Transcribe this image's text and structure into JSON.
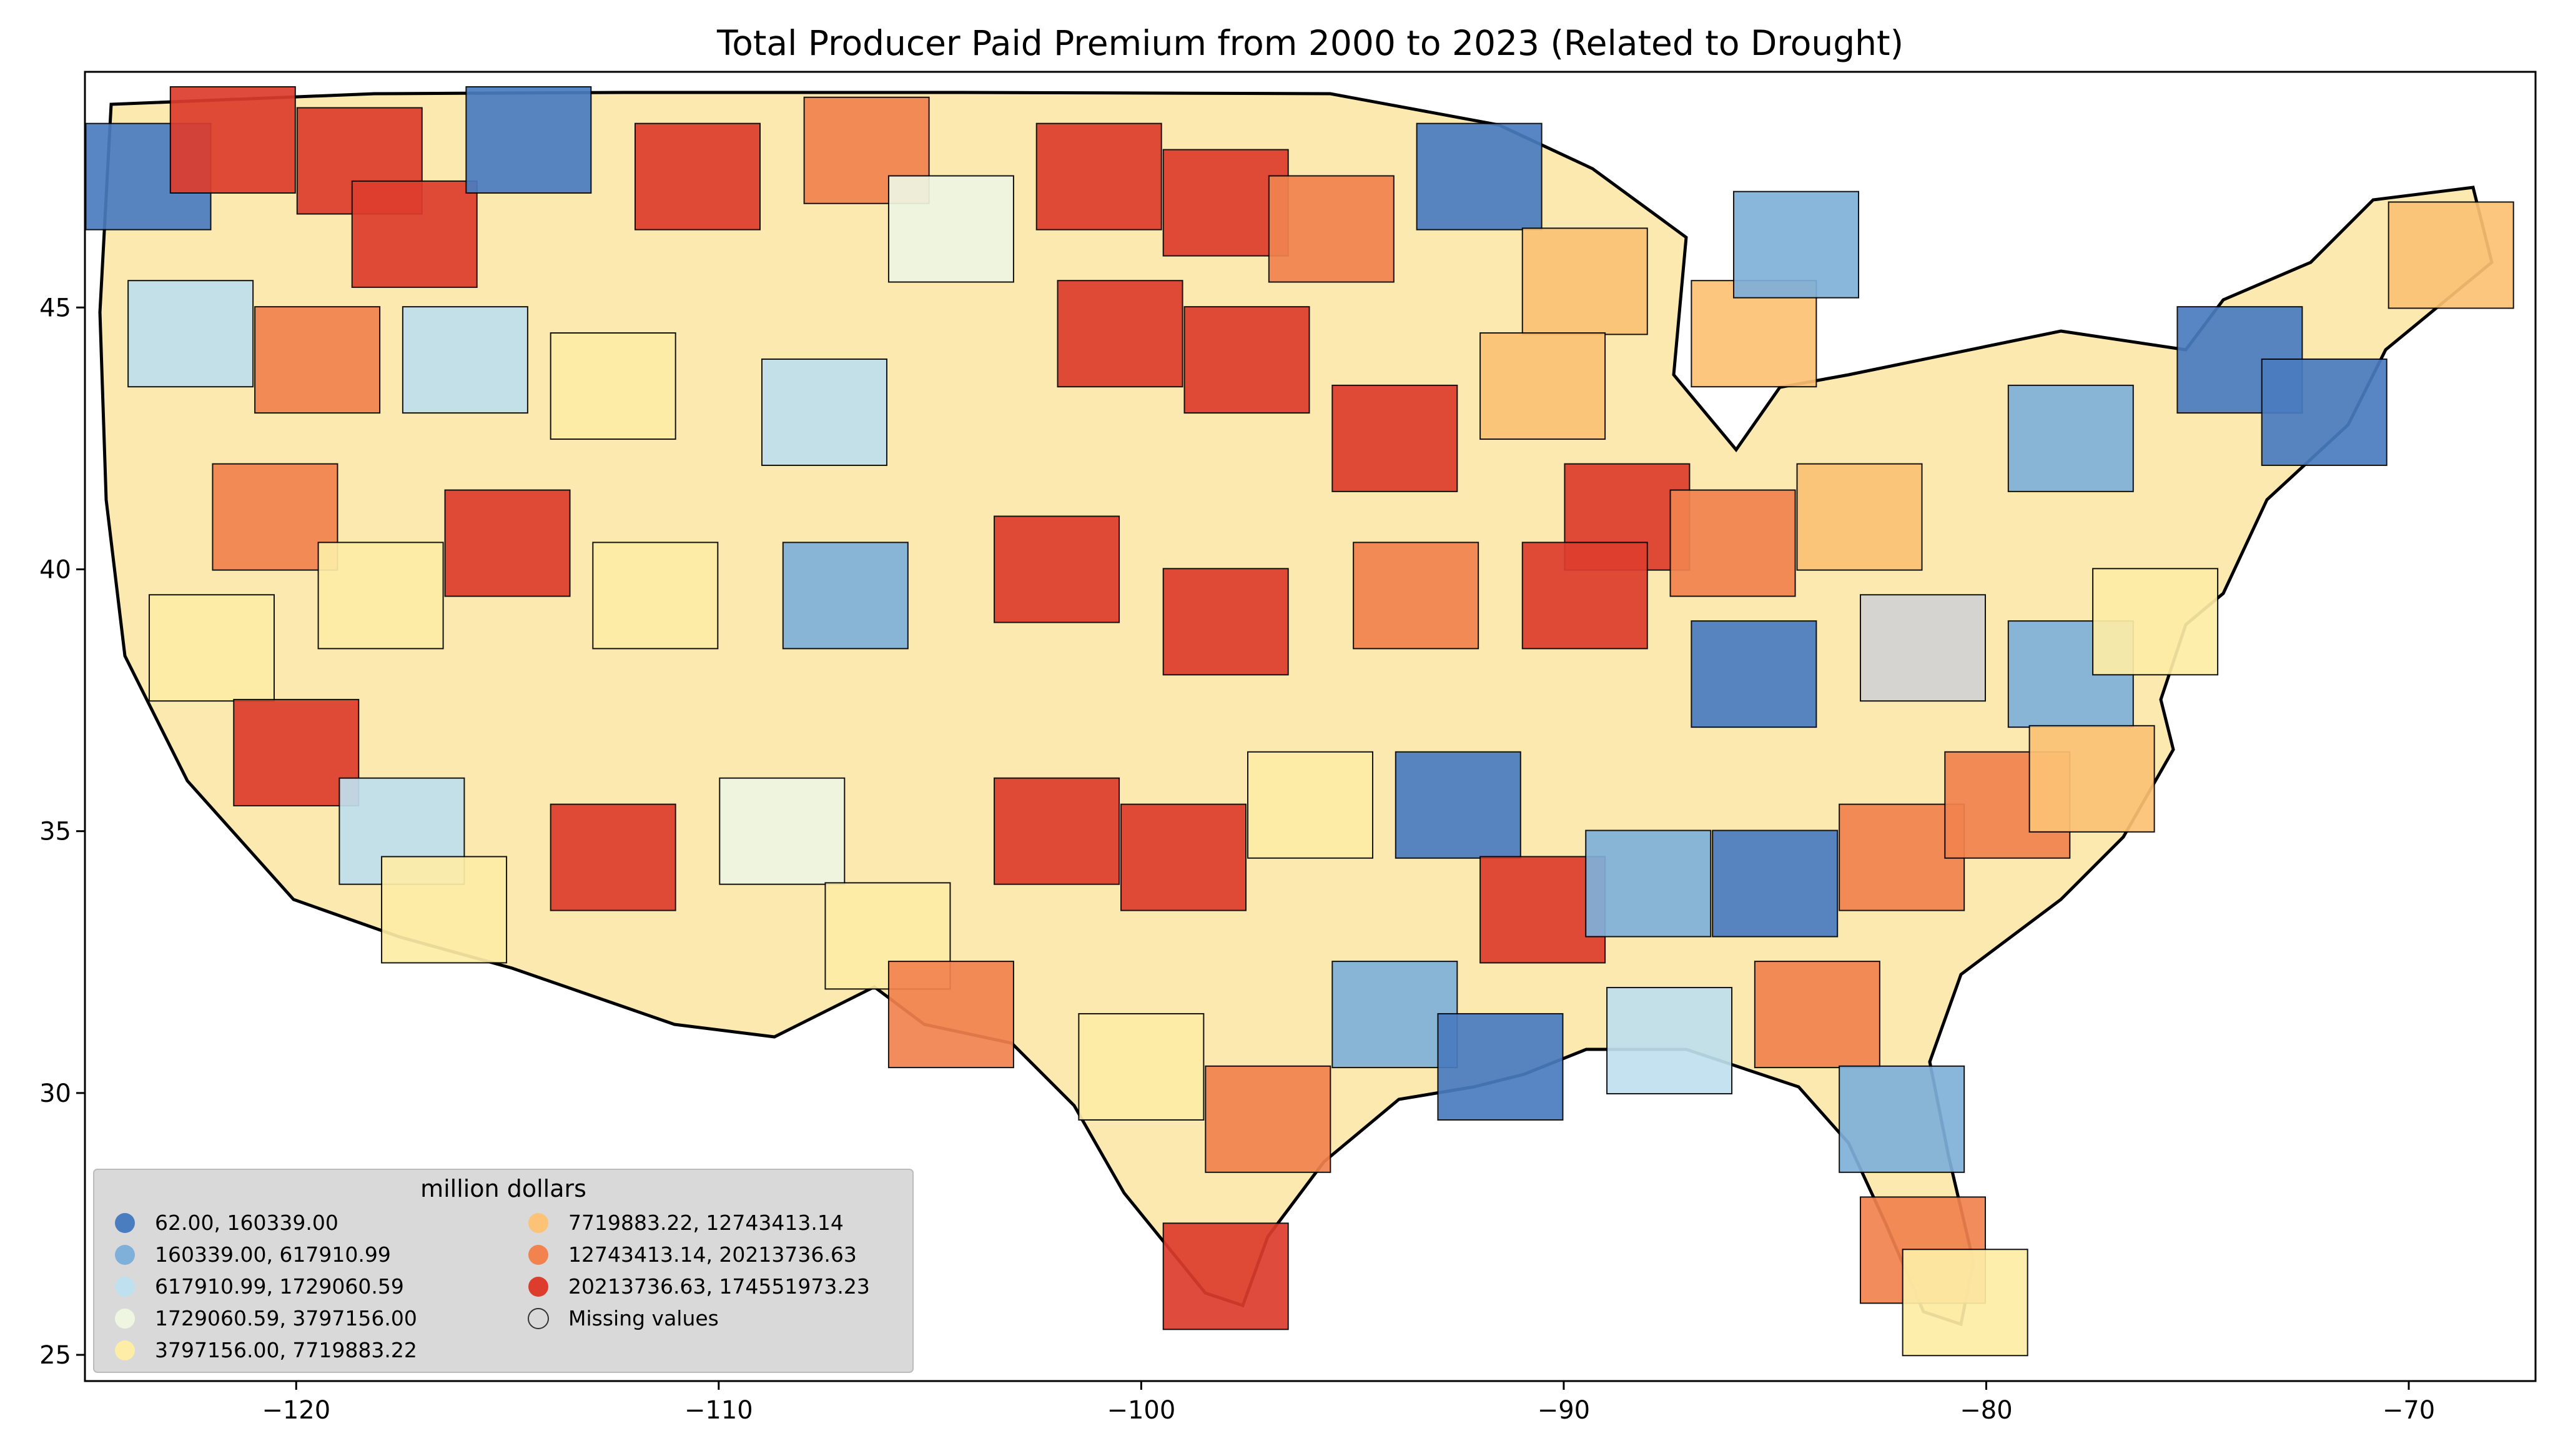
{
  "chart_data": {
    "type": "choropleth",
    "title": "Total Producer Paid Premium from 2000 to 2023 (Related to Drought)",
    "xlim": [
      -125,
      -67
    ],
    "ylim": [
      24.5,
      49.5
    ],
    "x_ticks": [
      {
        "value": -120,
        "label": "−120"
      },
      {
        "value": -110,
        "label": "−110"
      },
      {
        "value": -100,
        "label": "−100"
      },
      {
        "value": -90,
        "label": "−90"
      },
      {
        "value": -80,
        "label": "−80"
      },
      {
        "value": -70,
        "label": "−70"
      }
    ],
    "y_ticks": [
      {
        "value": 25,
        "label": "25"
      },
      {
        "value": 30,
        "label": "30"
      },
      {
        "value": 35,
        "label": "35"
      },
      {
        "value": 40,
        "label": "40"
      },
      {
        "value": 45,
        "label": "45"
      }
    ],
    "legend": {
      "title": "million dollars",
      "placement": "lower-left",
      "entries": [
        {
          "label": "62.00,    160339.00",
          "color": "#4a7cc0"
        },
        {
          "label": "160339.00,    617910.99",
          "color": "#7fb0d9"
        },
        {
          "label": "617910.99,   1729060.59",
          "color": "#bfe0ee"
        },
        {
          "label": "1729060.59,   3797156.00",
          "color": "#eef6e2"
        },
        {
          "label": "3797156.00,   7719883.22",
          "color": "#fdeda6"
        },
        {
          "label": "7719883.22,  12743413.14",
          "color": "#fcc275"
        },
        {
          "label": "12743413.14,  20213736.63",
          "color": "#f2834f"
        },
        {
          "label": "20213736.63, 174551973.23",
          "color": "#dd3d2d"
        },
        {
          "label": "Missing values",
          "color": "#d3d3d3"
        }
      ]
    },
    "regions": [
      {
        "lon": -123.5,
        "lat": 47.5,
        "bin": 0
      },
      {
        "lon": -121.5,
        "lat": 48.2,
        "bin": 7
      },
      {
        "lon": -118.5,
        "lat": 47.8,
        "bin": 7
      },
      {
        "lon": -117.2,
        "lat": 46.4,
        "bin": 7
      },
      {
        "lon": -114.5,
        "lat": 48.2,
        "bin": 0
      },
      {
        "lon": -110.5,
        "lat": 47.5,
        "bin": 7
      },
      {
        "lon": -106.5,
        "lat": 48.0,
        "bin": 6
      },
      {
        "lon": -104.5,
        "lat": 46.5,
        "bin": 3
      },
      {
        "lon": -101.0,
        "lat": 47.5,
        "bin": 7
      },
      {
        "lon": -98.0,
        "lat": 47.0,
        "bin": 7
      },
      {
        "lon": -95.5,
        "lat": 46.5,
        "bin": 6
      },
      {
        "lon": -92.0,
        "lat": 47.5,
        "bin": 0
      },
      {
        "lon": -89.5,
        "lat": 45.5,
        "bin": 5
      },
      {
        "lon": -85.5,
        "lat": 44.5,
        "bin": 5
      },
      {
        "lon": -84.5,
        "lat": 46.2,
        "bin": 1
      },
      {
        "lon": -122.5,
        "lat": 44.5,
        "bin": 2
      },
      {
        "lon": -119.5,
        "lat": 44.0,
        "bin": 6
      },
      {
        "lon": -116.0,
        "lat": 44.0,
        "bin": 2
      },
      {
        "lon": -112.5,
        "lat": 43.5,
        "bin": 4
      },
      {
        "lon": -107.5,
        "lat": 43.0,
        "bin": 2
      },
      {
        "lon": -100.5,
        "lat": 44.5,
        "bin": 7
      },
      {
        "lon": -97.5,
        "lat": 44.0,
        "bin": 7
      },
      {
        "lon": -94.0,
        "lat": 42.5,
        "bin": 7
      },
      {
        "lon": -90.5,
        "lat": 43.5,
        "bin": 5
      },
      {
        "lon": -88.5,
        "lat": 41.0,
        "bin": 7
      },
      {
        "lon": -86.0,
        "lat": 40.5,
        "bin": 6
      },
      {
        "lon": -83.0,
        "lat": 41.0,
        "bin": 5
      },
      {
        "lon": -78.0,
        "lat": 42.5,
        "bin": 1
      },
      {
        "lon": -74.0,
        "lat": 44.0,
        "bin": 0
      },
      {
        "lon": -72.0,
        "lat": 43.0,
        "bin": 0
      },
      {
        "lon": -69.0,
        "lat": 46.0,
        "bin": 5
      },
      {
        "lon": -120.5,
        "lat": 41.0,
        "bin": 6
      },
      {
        "lon": -118.0,
        "lat": 39.5,
        "bin": 4
      },
      {
        "lon": -115.0,
        "lat": 40.5,
        "bin": 7
      },
      {
        "lon": -111.5,
        "lat": 39.5,
        "bin": 4
      },
      {
        "lon": -107.0,
        "lat": 39.5,
        "bin": 1
      },
      {
        "lon": -102.0,
        "lat": 40.0,
        "bin": 7
      },
      {
        "lon": -98.0,
        "lat": 39.0,
        "bin": 7
      },
      {
        "lon": -93.5,
        "lat": 39.5,
        "bin": 6
      },
      {
        "lon": -89.5,
        "lat": 39.5,
        "bin": 7
      },
      {
        "lon": -85.5,
        "lat": 38.0,
        "bin": 0
      },
      {
        "lon": -81.5,
        "lat": 38.5,
        "bin": 8
      },
      {
        "lon": -78.0,
        "lat": 38.0,
        "bin": 1
      },
      {
        "lon": -76.0,
        "lat": 39.0,
        "bin": 4
      },
      {
        "lon": -122.0,
        "lat": 38.5,
        "bin": 4
      },
      {
        "lon": -120.0,
        "lat": 36.5,
        "bin": 7
      },
      {
        "lon": -117.5,
        "lat": 35.0,
        "bin": 2
      },
      {
        "lon": -112.5,
        "lat": 34.5,
        "bin": 7
      },
      {
        "lon": -108.5,
        "lat": 35.0,
        "bin": 3
      },
      {
        "lon": -106.0,
        "lat": 33.0,
        "bin": 4
      },
      {
        "lon": -102.0,
        "lat": 35.0,
        "bin": 7
      },
      {
        "lon": -99.0,
        "lat": 34.5,
        "bin": 7
      },
      {
        "lon": -96.0,
        "lat": 35.5,
        "bin": 4
      },
      {
        "lon": -92.5,
        "lat": 35.5,
        "bin": 0
      },
      {
        "lon": -90.5,
        "lat": 33.5,
        "bin": 7
      },
      {
        "lon": -88.0,
        "lat": 34.0,
        "bin": 1
      },
      {
        "lon": -85.0,
        "lat": 34.0,
        "bin": 0
      },
      {
        "lon": -82.0,
        "lat": 34.5,
        "bin": 6
      },
      {
        "lon": -79.5,
        "lat": 35.5,
        "bin": 6
      },
      {
        "lon": -77.5,
        "lat": 36.0,
        "bin": 5
      },
      {
        "lon": -116.5,
        "lat": 33.5,
        "bin": 4
      },
      {
        "lon": -104.5,
        "lat": 31.5,
        "bin": 6
      },
      {
        "lon": -100.0,
        "lat": 30.5,
        "bin": 4
      },
      {
        "lon": -97.0,
        "lat": 29.5,
        "bin": 6
      },
      {
        "lon": -98.0,
        "lat": 26.5,
        "bin": 7
      },
      {
        "lon": -94.0,
        "lat": 31.5,
        "bin": 1
      },
      {
        "lon": -91.5,
        "lat": 30.5,
        "bin": 0
      },
      {
        "lon": -87.5,
        "lat": 31.0,
        "bin": 2
      },
      {
        "lon": -84.0,
        "lat": 31.5,
        "bin": 6
      },
      {
        "lon": -82.0,
        "lat": 29.5,
        "bin": 1
      },
      {
        "lon": -81.5,
        "lat": 27.0,
        "bin": 6
      },
      {
        "lon": -80.5,
        "lat": 26.0,
        "bin": 4
      }
    ]
  }
}
